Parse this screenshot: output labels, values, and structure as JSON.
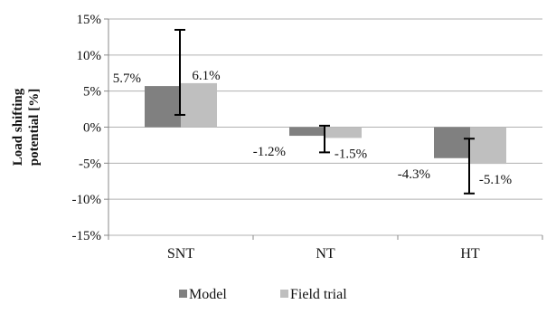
{
  "chart_data": {
    "type": "bar",
    "categories": [
      "SNT",
      "NT",
      "HT"
    ],
    "series": [
      {
        "name": "Model",
        "values": [
          5.7,
          -1.2,
          -4.3
        ],
        "data_labels": [
          "5.7%",
          "-1.2%",
          "-4.3%"
        ],
        "error_bars": [
          [
            1.7,
            13.5
          ],
          [
            -3.5,
            0.2
          ],
          [
            -9.2,
            -1.6
          ]
        ],
        "color": "#808080"
      },
      {
        "name": "Field trial",
        "values": [
          6.1,
          -1.5,
          -5.1
        ],
        "data_labels": [
          "6.1%",
          "-1.5%",
          "-5.1%"
        ],
        "color": "#bfbfbf"
      }
    ],
    "ylabel_lines": [
      "Load shifting",
      "potential [%]"
    ],
    "ylim": [
      -15,
      15
    ],
    "yticks": [
      -15,
      -10,
      -5,
      0,
      5,
      10,
      15
    ],
    "ytick_labels": [
      "-15%",
      "-10%",
      "-5%",
      "0%",
      "5%",
      "10%",
      "15%"
    ],
    "grid": true,
    "legend_position": "bottom",
    "gridline_color": "#b0b0b0"
  }
}
